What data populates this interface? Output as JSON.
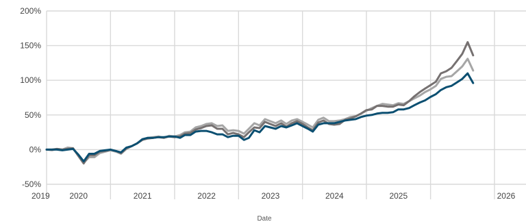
{
  "chart_data": {
    "type": "line",
    "title": "",
    "xlabel": "Date",
    "ylabel": "",
    "xlim": [
      "2019-01-01",
      "2026-06-30"
    ],
    "ylim": [
      -50,
      200
    ],
    "y_tick_labels": [
      "200%",
      "150%",
      "100%",
      "50%",
      "0%",
      "-50%"
    ],
    "y_tick_values": [
      200,
      150,
      100,
      50,
      0,
      -50
    ],
    "x_tick_labels": [
      "2019",
      "2020",
      "2021",
      "2022",
      "2023",
      "2024",
      "2025",
      "2026"
    ],
    "x_tick_dates": [
      "2019-01-01",
      "2020-01-01",
      "2021-01-01",
      "2022-01-01",
      "2023-01-01",
      "2024-01-01",
      "2025-01-01",
      "2026-01-01"
    ],
    "grid": true,
    "legend": false,
    "series": [
      {
        "color": "#a6a6a6",
        "points": [
          [
            "2019-01-01",
            0
          ],
          [
            "2019-02-01",
            -1
          ],
          [
            "2019-03-01",
            1
          ],
          [
            "2019-04-01",
            0
          ],
          [
            "2019-05-01",
            3
          ],
          [
            "2019-06-01",
            2
          ],
          [
            "2019-07-01",
            -8
          ],
          [
            "2019-08-01",
            -19
          ],
          [
            "2019-09-01",
            -11
          ],
          [
            "2019-10-01",
            -11
          ],
          [
            "2019-11-01",
            -5
          ],
          [
            "2019-12-01",
            -3
          ],
          [
            "2020-01-01",
            -1
          ],
          [
            "2020-02-01",
            -3
          ],
          [
            "2020-03-01",
            -6
          ],
          [
            "2020-04-01",
            1
          ],
          [
            "2020-05-01",
            5
          ],
          [
            "2020-06-01",
            9
          ],
          [
            "2020-07-01",
            14
          ],
          [
            "2020-08-01",
            17
          ],
          [
            "2020-09-01",
            18
          ],
          [
            "2020-10-01",
            19
          ],
          [
            "2020-11-01",
            17
          ],
          [
            "2020-12-01",
            20
          ],
          [
            "2021-01-01",
            19
          ],
          [
            "2021-02-01",
            21
          ],
          [
            "2021-03-01",
            25
          ],
          [
            "2021-04-01",
            26
          ],
          [
            "2021-05-01",
            32
          ],
          [
            "2021-06-01",
            34
          ],
          [
            "2021-07-01",
            37
          ],
          [
            "2021-08-01",
            38
          ],
          [
            "2021-09-01",
            34
          ],
          [
            "2021-10-01",
            35
          ],
          [
            "2021-11-01",
            27
          ],
          [
            "2021-12-01",
            28
          ],
          [
            "2022-01-01",
            27
          ],
          [
            "2022-02-01",
            23
          ],
          [
            "2022-03-01",
            30
          ],
          [
            "2022-04-01",
            38
          ],
          [
            "2022-05-01",
            35
          ],
          [
            "2022-06-01",
            44
          ],
          [
            "2022-07-01",
            41
          ],
          [
            "2022-08-01",
            38
          ],
          [
            "2022-09-01",
            42
          ],
          [
            "2022-10-01",
            37
          ],
          [
            "2022-11-01",
            42
          ],
          [
            "2022-12-01",
            44
          ],
          [
            "2023-01-01",
            40
          ],
          [
            "2023-02-01",
            36
          ],
          [
            "2023-03-01",
            32
          ],
          [
            "2023-04-01",
            43
          ],
          [
            "2023-05-01",
            46
          ],
          [
            "2023-06-01",
            41
          ],
          [
            "2023-07-01",
            41
          ],
          [
            "2023-08-01",
            42
          ],
          [
            "2023-09-01",
            44
          ],
          [
            "2023-10-01",
            47
          ],
          [
            "2023-11-01",
            48
          ],
          [
            "2023-12-01",
            52
          ],
          [
            "2024-01-01",
            56
          ],
          [
            "2024-02-01",
            60
          ],
          [
            "2024-03-01",
            63
          ],
          [
            "2024-04-01",
            66
          ],
          [
            "2024-05-01",
            65
          ],
          [
            "2024-06-01",
            64
          ],
          [
            "2024-07-01",
            67
          ],
          [
            "2024-08-01",
            66
          ],
          [
            "2024-09-01",
            70
          ],
          [
            "2024-10-01",
            74
          ],
          [
            "2024-11-01",
            78
          ],
          [
            "2024-12-01",
            83
          ],
          [
            "2025-01-01",
            87
          ],
          [
            "2025-02-01",
            92
          ],
          [
            "2025-03-01",
            102
          ],
          [
            "2025-04-01",
            105
          ],
          [
            "2025-05-01",
            106
          ],
          [
            "2025-06-01",
            113
          ],
          [
            "2025-07-01",
            120
          ],
          [
            "2025-08-01",
            131
          ],
          [
            "2025-09-01",
            114
          ]
        ]
      },
      {
        "color": "#767171",
        "points": [
          [
            "2019-01-01",
            0
          ],
          [
            "2019-02-01",
            0
          ],
          [
            "2019-03-01",
            1
          ],
          [
            "2019-04-01",
            0
          ],
          [
            "2019-05-01",
            1
          ],
          [
            "2019-06-01",
            2
          ],
          [
            "2019-07-01",
            -9
          ],
          [
            "2019-08-01",
            -20
          ],
          [
            "2019-09-01",
            -8
          ],
          [
            "2019-10-01",
            -8
          ],
          [
            "2019-11-01",
            -3
          ],
          [
            "2019-12-01",
            -2
          ],
          [
            "2020-01-01",
            0
          ],
          [
            "2020-02-01",
            -2
          ],
          [
            "2020-03-01",
            -5
          ],
          [
            "2020-04-01",
            2
          ],
          [
            "2020-05-01",
            5
          ],
          [
            "2020-06-01",
            9
          ],
          [
            "2020-07-01",
            14
          ],
          [
            "2020-08-01",
            16
          ],
          [
            "2020-09-01",
            17
          ],
          [
            "2020-10-01",
            18
          ],
          [
            "2020-11-01",
            17
          ],
          [
            "2020-12-01",
            19
          ],
          [
            "2021-01-01",
            18
          ],
          [
            "2021-02-01",
            19
          ],
          [
            "2021-03-01",
            23
          ],
          [
            "2021-04-01",
            24
          ],
          [
            "2021-05-01",
            29
          ],
          [
            "2021-06-01",
            31
          ],
          [
            "2021-07-01",
            34
          ],
          [
            "2021-08-01",
            35
          ],
          [
            "2021-09-01",
            30
          ],
          [
            "2021-10-01",
            30
          ],
          [
            "2021-11-01",
            22
          ],
          [
            "2021-12-01",
            24
          ],
          [
            "2022-01-01",
            22
          ],
          [
            "2022-02-01",
            18
          ],
          [
            "2022-03-01",
            25
          ],
          [
            "2022-04-01",
            32
          ],
          [
            "2022-05-01",
            31
          ],
          [
            "2022-06-01",
            40
          ],
          [
            "2022-07-01",
            37
          ],
          [
            "2022-08-01",
            34
          ],
          [
            "2022-09-01",
            38
          ],
          [
            "2022-10-01",
            33
          ],
          [
            "2022-11-01",
            38
          ],
          [
            "2022-12-01",
            41
          ],
          [
            "2023-01-01",
            37
          ],
          [
            "2023-02-01",
            32
          ],
          [
            "2023-03-01",
            28
          ],
          [
            "2023-04-01",
            39
          ],
          [
            "2023-05-01",
            42
          ],
          [
            "2023-06-01",
            37
          ],
          [
            "2023-07-01",
            36
          ],
          [
            "2023-08-01",
            37
          ],
          [
            "2023-09-01",
            43
          ],
          [
            "2023-10-01",
            45
          ],
          [
            "2023-11-01",
            48
          ],
          [
            "2023-12-01",
            52
          ],
          [
            "2024-01-01",
            57
          ],
          [
            "2024-02-01",
            58
          ],
          [
            "2024-03-01",
            63
          ],
          [
            "2024-04-01",
            63
          ],
          [
            "2024-05-01",
            62
          ],
          [
            "2024-06-01",
            62
          ],
          [
            "2024-07-01",
            65
          ],
          [
            "2024-08-01",
            64
          ],
          [
            "2024-09-01",
            70
          ],
          [
            "2024-10-01",
            77
          ],
          [
            "2024-11-01",
            83
          ],
          [
            "2024-12-01",
            88
          ],
          [
            "2025-01-01",
            93
          ],
          [
            "2025-02-01",
            98
          ],
          [
            "2025-03-01",
            110
          ],
          [
            "2025-04-01",
            113
          ],
          [
            "2025-05-01",
            118
          ],
          [
            "2025-06-01",
            128
          ],
          [
            "2025-07-01",
            138
          ],
          [
            "2025-08-01",
            155
          ],
          [
            "2025-09-01",
            136
          ]
        ]
      },
      {
        "color": "#0b4f71",
        "points": [
          [
            "2019-01-01",
            0
          ],
          [
            "2019-02-01",
            0
          ],
          [
            "2019-03-01",
            0
          ],
          [
            "2019-04-01",
            -1
          ],
          [
            "2019-05-01",
            0
          ],
          [
            "2019-06-01",
            1
          ],
          [
            "2019-07-01",
            -7
          ],
          [
            "2019-08-01",
            -17
          ],
          [
            "2019-09-01",
            -6
          ],
          [
            "2019-10-01",
            -6
          ],
          [
            "2019-11-01",
            -2
          ],
          [
            "2019-12-01",
            -1
          ],
          [
            "2020-01-01",
            0
          ],
          [
            "2020-02-01",
            -2
          ],
          [
            "2020-03-01",
            -4
          ],
          [
            "2020-04-01",
            3
          ],
          [
            "2020-05-01",
            5
          ],
          [
            "2020-06-01",
            9
          ],
          [
            "2020-07-01",
            15
          ],
          [
            "2020-08-01",
            17
          ],
          [
            "2020-09-01",
            17
          ],
          [
            "2020-10-01",
            18
          ],
          [
            "2020-11-01",
            18
          ],
          [
            "2020-12-01",
            19
          ],
          [
            "2021-01-01",
            19
          ],
          [
            "2021-02-01",
            17
          ],
          [
            "2021-03-01",
            21
          ],
          [
            "2021-04-01",
            21
          ],
          [
            "2021-05-01",
            26
          ],
          [
            "2021-06-01",
            27
          ],
          [
            "2021-07-01",
            27
          ],
          [
            "2021-08-01",
            25
          ],
          [
            "2021-09-01",
            22
          ],
          [
            "2021-10-01",
            22
          ],
          [
            "2021-11-01",
            18
          ],
          [
            "2021-12-01",
            20
          ],
          [
            "2022-01-01",
            20
          ],
          [
            "2022-02-01",
            14
          ],
          [
            "2022-03-01",
            17
          ],
          [
            "2022-04-01",
            28
          ],
          [
            "2022-05-01",
            25
          ],
          [
            "2022-06-01",
            34
          ],
          [
            "2022-07-01",
            32
          ],
          [
            "2022-08-01",
            30
          ],
          [
            "2022-09-01",
            34
          ],
          [
            "2022-10-01",
            32
          ],
          [
            "2022-11-01",
            35
          ],
          [
            "2022-12-01",
            38
          ],
          [
            "2023-01-01",
            34
          ],
          [
            "2023-02-01",
            30
          ],
          [
            "2023-03-01",
            26
          ],
          [
            "2023-04-01",
            36
          ],
          [
            "2023-05-01",
            38
          ],
          [
            "2023-06-01",
            38
          ],
          [
            "2023-07-01",
            38
          ],
          [
            "2023-08-01",
            40
          ],
          [
            "2023-09-01",
            42
          ],
          [
            "2023-10-01",
            43
          ],
          [
            "2023-11-01",
            44
          ],
          [
            "2023-12-01",
            47
          ],
          [
            "2024-01-01",
            49
          ],
          [
            "2024-02-01",
            50
          ],
          [
            "2024-03-01",
            52
          ],
          [
            "2024-04-01",
            53
          ],
          [
            "2024-05-01",
            53
          ],
          [
            "2024-06-01",
            54
          ],
          [
            "2024-07-01",
            58
          ],
          [
            "2024-08-01",
            58
          ],
          [
            "2024-09-01",
            60
          ],
          [
            "2024-10-01",
            64
          ],
          [
            "2024-11-01",
            68
          ],
          [
            "2024-12-01",
            71
          ],
          [
            "2025-01-01",
            76
          ],
          [
            "2025-02-01",
            80
          ],
          [
            "2025-03-01",
            86
          ],
          [
            "2025-04-01",
            90
          ],
          [
            "2025-05-01",
            92
          ],
          [
            "2025-06-01",
            97
          ],
          [
            "2025-07-01",
            102
          ],
          [
            "2025-08-01",
            110
          ],
          [
            "2025-09-01",
            96
          ]
        ]
      }
    ]
  }
}
